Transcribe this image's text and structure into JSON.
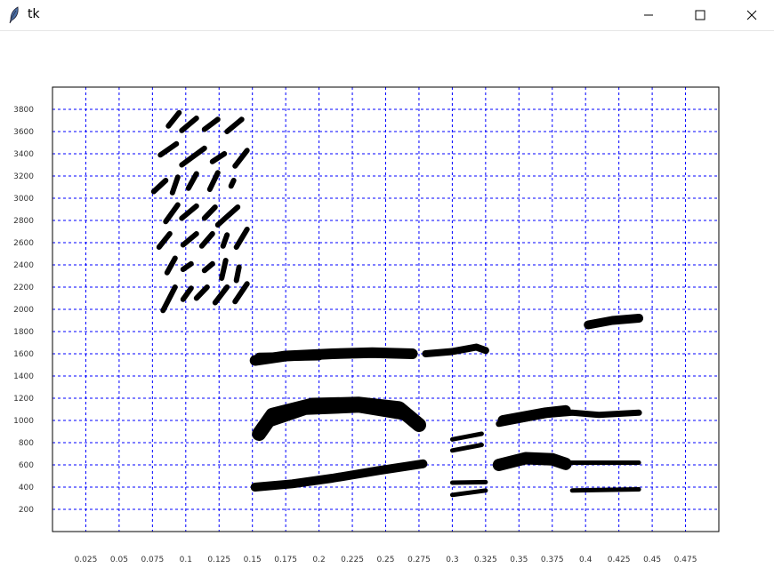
{
  "window": {
    "title": "tk",
    "icon": "feather-icon",
    "controls": [
      "minimize-icon",
      "maximize-icon",
      "close-icon"
    ]
  },
  "chart_data": {
    "type": "scatter",
    "title": "",
    "xlabel": "",
    "ylabel": "",
    "xlim": [
      0,
      0.5
    ],
    "ylim": [
      0,
      4000
    ],
    "grid": true,
    "grid_color": "#0000ff",
    "mark_color": "#000000",
    "x_ticks": [
      0.025,
      0.05,
      0.075,
      0.1,
      0.125,
      0.15,
      0.175,
      0.2,
      0.225,
      0.25,
      0.275,
      0.3,
      0.325,
      0.35,
      0.375,
      0.4,
      0.425,
      0.45,
      0.475
    ],
    "x_tick_labels": [
      "0.025",
      "0.05",
      "0.075",
      "0.1",
      "0.125",
      "0.15",
      "0.175",
      "0.2",
      "0.225",
      "0.25",
      "0.275",
      "0.3",
      "0.325",
      "0.35",
      "0.375",
      "0.4",
      "0.425",
      "0.45",
      "0.475"
    ],
    "y_ticks": [
      200,
      400,
      600,
      800,
      1000,
      1200,
      1400,
      1600,
      1800,
      2000,
      2200,
      2400,
      2600,
      2800,
      3000,
      3200,
      3400,
      3600,
      3800
    ],
    "y_tick_labels": [
      "200",
      "400",
      "600",
      "800",
      "1000",
      "1200",
      "1400",
      "1600",
      "1800",
      "2000",
      "2200",
      "2400",
      "2600",
      "2800",
      "3000",
      "3200",
      "3400",
      "3600",
      "3800"
    ],
    "strokes": [
      {
        "points": [
          [
            0.083,
            1990
          ],
          [
            0.092,
            2200
          ]
        ],
        "width": 6
      },
      {
        "points": [
          [
            0.098,
            2090
          ],
          [
            0.104,
            2190
          ]
        ],
        "width": 6
      },
      {
        "points": [
          [
            0.108,
            2100
          ],
          [
            0.116,
            2200
          ]
        ],
        "width": 6
      },
      {
        "points": [
          [
            0.122,
            2060
          ],
          [
            0.131,
            2200
          ]
        ],
        "width": 6
      },
      {
        "points": [
          [
            0.137,
            2070
          ],
          [
            0.146,
            2230
          ]
        ],
        "width": 6
      },
      {
        "points": [
          [
            0.086,
            2330
          ],
          [
            0.092,
            2460
          ]
        ],
        "width": 6
      },
      {
        "points": [
          [
            0.098,
            2360
          ],
          [
            0.104,
            2410
          ]
        ],
        "width": 6
      },
      {
        "points": [
          [
            0.114,
            2350
          ],
          [
            0.12,
            2410
          ]
        ],
        "width": 6
      },
      {
        "points": [
          [
            0.127,
            2280
          ],
          [
            0.13,
            2440
          ]
        ],
        "width": 6
      },
      {
        "points": [
          [
            0.138,
            2260
          ],
          [
            0.14,
            2380
          ]
        ],
        "width": 6
      },
      {
        "points": [
          [
            0.08,
            2560
          ],
          [
            0.088,
            2680
          ]
        ],
        "width": 6
      },
      {
        "points": [
          [
            0.098,
            2580
          ],
          [
            0.108,
            2680
          ]
        ],
        "width": 6
      },
      {
        "points": [
          [
            0.112,
            2570
          ],
          [
            0.12,
            2680
          ]
        ],
        "width": 6
      },
      {
        "points": [
          [
            0.128,
            2570
          ],
          [
            0.131,
            2670
          ]
        ],
        "width": 6
      },
      {
        "points": [
          [
            0.138,
            2560
          ],
          [
            0.146,
            2720
          ]
        ],
        "width": 6
      },
      {
        "points": [
          [
            0.085,
            2790
          ],
          [
            0.094,
            2940
          ]
        ],
        "width": 6
      },
      {
        "points": [
          [
            0.097,
            2820
          ],
          [
            0.108,
            2930
          ]
        ],
        "width": 6
      },
      {
        "points": [
          [
            0.114,
            2820
          ],
          [
            0.122,
            2920
          ]
        ],
        "width": 6
      },
      {
        "points": [
          [
            0.124,
            2760
          ],
          [
            0.139,
            2920
          ]
        ],
        "width": 6
      },
      {
        "points": [
          [
            0.076,
            3060
          ],
          [
            0.085,
            3160
          ]
        ],
        "width": 6
      },
      {
        "points": [
          [
            0.09,
            3050
          ],
          [
            0.094,
            3190
          ]
        ],
        "width": 6
      },
      {
        "points": [
          [
            0.102,
            3090
          ],
          [
            0.108,
            3220
          ]
        ],
        "width": 6
      },
      {
        "points": [
          [
            0.118,
            3080
          ],
          [
            0.124,
            3230
          ]
        ],
        "width": 6
      },
      {
        "points": [
          [
            0.134,
            3110
          ],
          [
            0.136,
            3160
          ]
        ],
        "width": 6
      },
      {
        "points": [
          [
            0.081,
            3390
          ],
          [
            0.093,
            3490
          ]
        ],
        "width": 6
      },
      {
        "points": [
          [
            0.097,
            3300
          ],
          [
            0.114,
            3450
          ]
        ],
        "width": 6
      },
      {
        "points": [
          [
            0.12,
            3330
          ],
          [
            0.129,
            3400
          ]
        ],
        "width": 6
      },
      {
        "points": [
          [
            0.137,
            3290
          ],
          [
            0.146,
            3430
          ]
        ],
        "width": 6
      },
      {
        "points": [
          [
            0.087,
            3650
          ],
          [
            0.095,
            3770
          ]
        ],
        "width": 6
      },
      {
        "points": [
          [
            0.097,
            3610
          ],
          [
            0.108,
            3720
          ]
        ],
        "width": 6
      },
      {
        "points": [
          [
            0.114,
            3620
          ],
          [
            0.124,
            3710
          ]
        ],
        "width": 6
      },
      {
        "points": [
          [
            0.131,
            3600
          ],
          [
            0.142,
            3710
          ]
        ],
        "width": 6
      },
      {
        "points": [
          [
            0.152,
            1540
          ],
          [
            0.175,
            1580
          ],
          [
            0.21,
            1600
          ],
          [
            0.24,
            1610
          ],
          [
            0.27,
            1600
          ]
        ],
        "width": 12
      },
      {
        "points": [
          [
            0.155,
            1570
          ],
          [
            0.2,
            1580
          ]
        ],
        "width": 10
      },
      {
        "points": [
          [
            0.28,
            1600
          ],
          [
            0.3,
            1620
          ],
          [
            0.318,
            1660
          ],
          [
            0.325,
            1630
          ]
        ],
        "width": 8
      },
      {
        "points": [
          [
            0.402,
            1860
          ],
          [
            0.42,
            1900
          ],
          [
            0.44,
            1920
          ]
        ],
        "width": 10
      },
      {
        "points": [
          [
            0.155,
            880
          ],
          [
            0.165,
            1050
          ],
          [
            0.195,
            1140
          ],
          [
            0.23,
            1150
          ],
          [
            0.26,
            1110
          ],
          [
            0.275,
            960
          ]
        ],
        "width": 16
      },
      {
        "points": [
          [
            0.158,
            960
          ],
          [
            0.19,
            1090
          ],
          [
            0.23,
            1110
          ],
          [
            0.265,
            1040
          ]
        ],
        "width": 10
      },
      {
        "points": [
          [
            0.3,
            830
          ],
          [
            0.322,
            880
          ]
        ],
        "width": 5
      },
      {
        "points": [
          [
            0.3,
            730
          ],
          [
            0.322,
            780
          ]
        ],
        "width": 5
      },
      {
        "points": [
          [
            0.335,
            970
          ],
          [
            0.37,
            1050
          ],
          [
            0.39,
            1070
          ],
          [
            0.41,
            1050
          ],
          [
            0.44,
            1070
          ]
        ],
        "width": 7
      },
      {
        "points": [
          [
            0.338,
            1000
          ],
          [
            0.37,
            1070
          ],
          [
            0.385,
            1090
          ]
        ],
        "width": 12
      },
      {
        "points": [
          [
            0.335,
            600
          ],
          [
            0.355,
            660
          ],
          [
            0.375,
            650
          ],
          [
            0.385,
            610
          ]
        ],
        "width": 14
      },
      {
        "points": [
          [
            0.386,
            620
          ],
          [
            0.44,
            620
          ]
        ],
        "width": 5
      },
      {
        "points": [
          [
            0.152,
            400
          ],
          [
            0.18,
            430
          ],
          [
            0.21,
            480
          ],
          [
            0.245,
            550
          ],
          [
            0.278,
            610
          ]
        ],
        "width": 10
      },
      {
        "points": [
          [
            0.3,
            440
          ],
          [
            0.325,
            445
          ]
        ],
        "width": 5
      },
      {
        "points": [
          [
            0.3,
            330
          ],
          [
            0.325,
            370
          ]
        ],
        "width": 5
      },
      {
        "points": [
          [
            0.39,
            370
          ],
          [
            0.44,
            380
          ]
        ],
        "width": 5
      }
    ]
  }
}
